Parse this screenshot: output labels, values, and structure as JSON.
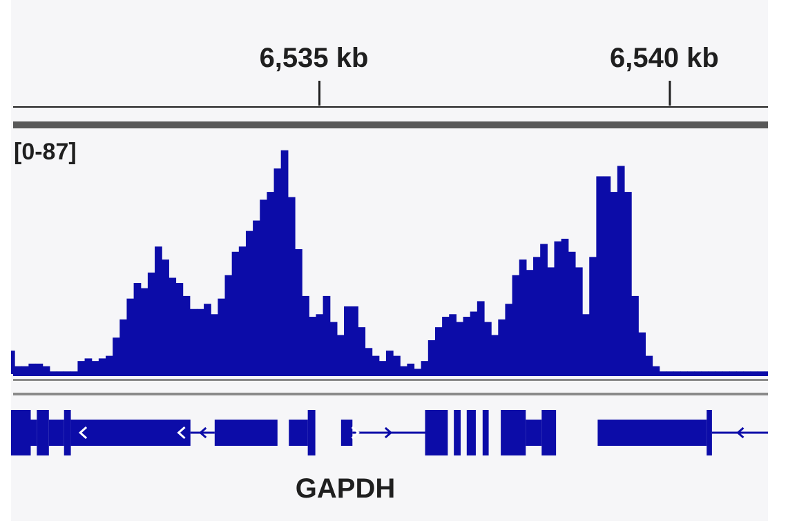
{
  "chart_data": {
    "type": "area",
    "title": "",
    "xlabel": "",
    "ylabel": "",
    "ruler": {
      "unit": "kb",
      "ticks": [
        {
          "pos_kb": 6535,
          "label": "6,535 kb"
        },
        {
          "pos_kb": 6540,
          "label": "6,540 kb"
        }
      ]
    },
    "xlim_kb": [
      6530.6,
      6541.4
    ],
    "ylim": [
      0,
      87
    ],
    "range_label": "[0-87]",
    "colors": {
      "coverage": "#0c0ca8",
      "gene": "#0c0ca8",
      "ruler": "#1f1f1f",
      "separator": "#585858"
    },
    "coverage": {
      "x_kb": [
        6530.6,
        6530.7,
        6530.8,
        6530.9,
        6531.0,
        6531.1,
        6531.2,
        6531.3,
        6531.4,
        6531.5,
        6531.6,
        6531.7,
        6531.8,
        6531.9,
        6532.0,
        6532.1,
        6532.2,
        6532.3,
        6532.4,
        6532.5,
        6532.6,
        6532.7,
        6532.8,
        6532.9,
        6533.0,
        6533.1,
        6533.2,
        6533.3,
        6533.4,
        6533.5,
        6533.6,
        6533.7,
        6533.8,
        6533.9,
        6534.0,
        6534.1,
        6534.2,
        6534.3,
        6534.4,
        6534.5,
        6534.6,
        6534.7,
        6534.8,
        6534.9,
        6535.0,
        6535.1,
        6535.2,
        6535.3,
        6535.4,
        6535.5,
        6535.6,
        6535.7,
        6535.8,
        6535.9,
        6536.0,
        6536.1,
        6536.2,
        6536.3,
        6536.4,
        6536.5,
        6536.6,
        6536.7,
        6536.8,
        6536.9,
        6537.0,
        6537.1,
        6537.2,
        6537.3,
        6537.4,
        6537.5,
        6537.6,
        6537.7,
        6537.8,
        6537.9,
        6538.0,
        6538.1,
        6538.2,
        6538.3,
        6538.4,
        6538.5,
        6538.6,
        6538.7,
        6538.8,
        6538.9,
        6539.0,
        6539.1,
        6539.2,
        6539.3,
        6539.4,
        6539.5,
        6539.6,
        6539.7,
        6539.8,
        6539.9,
        6540.0,
        6540.1,
        6540.2,
        6540.3,
        6540.4,
        6540.5,
        6540.6,
        6540.7,
        6540.8,
        6540.9,
        6541.0,
        6541.1,
        6541.2,
        6541.3,
        6541.4
      ],
      "y": [
        9,
        3,
        3,
        4,
        4,
        3,
        1,
        1,
        1,
        1,
        5,
        6,
        5,
        6,
        7,
        14,
        21,
        29,
        35,
        33,
        39,
        49,
        44,
        37,
        35,
        30,
        25,
        25,
        27,
        23,
        29,
        38,
        47,
        49,
        55,
        59,
        67,
        70,
        79,
        86,
        68,
        48,
        30,
        22,
        23,
        30,
        20,
        15,
        26,
        26,
        18,
        10,
        7,
        5,
        9,
        7,
        3,
        4,
        2,
        5,
        13,
        18,
        22,
        23,
        20,
        22,
        24,
        28,
        20,
        15,
        21,
        27,
        38,
        44,
        40,
        45,
        50,
        41,
        51,
        52,
        47,
        41,
        23,
        45,
        76,
        76,
        70,
        80,
        70,
        30,
        16,
        7,
        3,
        1,
        1,
        1,
        1,
        1,
        1,
        1,
        1,
        1,
        1,
        1,
        1,
        1,
        1,
        1,
        1
      ]
    },
    "gene": {
      "name": "GAPDH",
      "exons": [
        {
          "x0": 0.0,
          "x1": 0.026,
          "tall": true
        },
        {
          "x0": 0.026,
          "x1": 0.034,
          "tall": false
        },
        {
          "x0": 0.034,
          "x1": 0.05,
          "tall": true
        },
        {
          "x0": 0.05,
          "x1": 0.07,
          "tall": false
        },
        {
          "x0": 0.07,
          "x1": 0.079,
          "tall": true
        },
        {
          "x0": 0.079,
          "x1": 0.237,
          "tall": false
        },
        {
          "x0": 0.269,
          "x1": 0.352,
          "tall": false
        },
        {
          "x0": 0.367,
          "x1": 0.392,
          "tall": false
        },
        {
          "x0": 0.392,
          "x1": 0.402,
          "tall": true
        },
        {
          "x0": 0.436,
          "x1": 0.451,
          "tall": false
        },
        {
          "x0": 0.547,
          "x1": 0.577,
          "tall": true
        },
        {
          "x0": 0.585,
          "x1": 0.594,
          "tall": true
        },
        {
          "x0": 0.602,
          "x1": 0.614,
          "tall": true
        },
        {
          "x0": 0.623,
          "x1": 0.631,
          "tall": true
        },
        {
          "x0": 0.647,
          "x1": 0.68,
          "tall": true
        },
        {
          "x0": 0.68,
          "x1": 0.701,
          "tall": false
        },
        {
          "x0": 0.701,
          "x1": 0.72,
          "tall": true
        },
        {
          "x0": 0.775,
          "x1": 0.919,
          "tall": false
        },
        {
          "x0": 0.919,
          "x1": 0.926,
          "tall": true
        }
      ],
      "introns": [
        {
          "x0": 0.237,
          "x1": 0.269,
          "dir": "left"
        },
        {
          "x0": 0.451,
          "x1": 0.547,
          "dir": "right"
        },
        {
          "x0": 0.926,
          "x1": 1.0,
          "dir": "left"
        }
      ],
      "exon_arrows": [
        {
          "x": 0.095,
          "dir": "left"
        },
        {
          "x": 0.225,
          "dir": "left"
        },
        {
          "x": 0.455,
          "dir": "right"
        }
      ]
    }
  }
}
